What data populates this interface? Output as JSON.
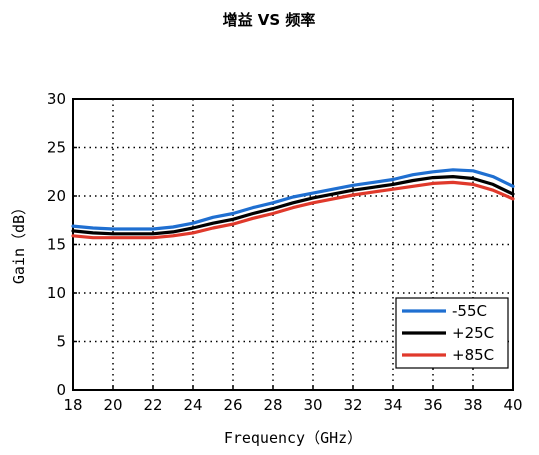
{
  "chart_data": {
    "type": "line",
    "title": "增益 VS 频率",
    "xlabel": "Frequency（GHz）",
    "ylabel": "Gain（dB）",
    "xlim": [
      18,
      40
    ],
    "ylim": [
      0,
      30
    ],
    "xticks": [
      18,
      20,
      22,
      24,
      26,
      28,
      30,
      32,
      34,
      36,
      38,
      40
    ],
    "yticks": [
      0,
      5,
      10,
      15,
      20,
      25,
      30
    ],
    "grid": true,
    "grid_style": "dotted",
    "legend_position": "bottom-right",
    "x": [
      18,
      19,
      20,
      21,
      22,
      23,
      24,
      25,
      26,
      27,
      28,
      29,
      30,
      31,
      32,
      33,
      34,
      35,
      36,
      37,
      38,
      39,
      40
    ],
    "series": [
      {
        "name": "-55C",
        "color": "#1f6fd1",
        "values": [
          16.9,
          16.7,
          16.6,
          16.6,
          16.6,
          16.8,
          17.2,
          17.8,
          18.2,
          18.8,
          19.3,
          19.9,
          20.3,
          20.7,
          21.1,
          21.4,
          21.7,
          22.2,
          22.5,
          22.7,
          22.6,
          22.0,
          21.0
        ]
      },
      {
        "name": "+25C",
        "color": "#000000",
        "values": [
          16.4,
          16.2,
          16.1,
          16.1,
          16.1,
          16.3,
          16.7,
          17.2,
          17.6,
          18.2,
          18.7,
          19.3,
          19.8,
          20.2,
          20.6,
          20.9,
          21.2,
          21.6,
          21.9,
          22.0,
          21.8,
          21.2,
          20.2
        ]
      },
      {
        "name": "+85C",
        "color": "#e0392b",
        "values": [
          15.9,
          15.7,
          15.7,
          15.7,
          15.7,
          15.9,
          16.2,
          16.7,
          17.1,
          17.7,
          18.2,
          18.8,
          19.3,
          19.7,
          20.1,
          20.4,
          20.7,
          21.0,
          21.3,
          21.4,
          21.2,
          20.6,
          19.7
        ]
      }
    ]
  }
}
